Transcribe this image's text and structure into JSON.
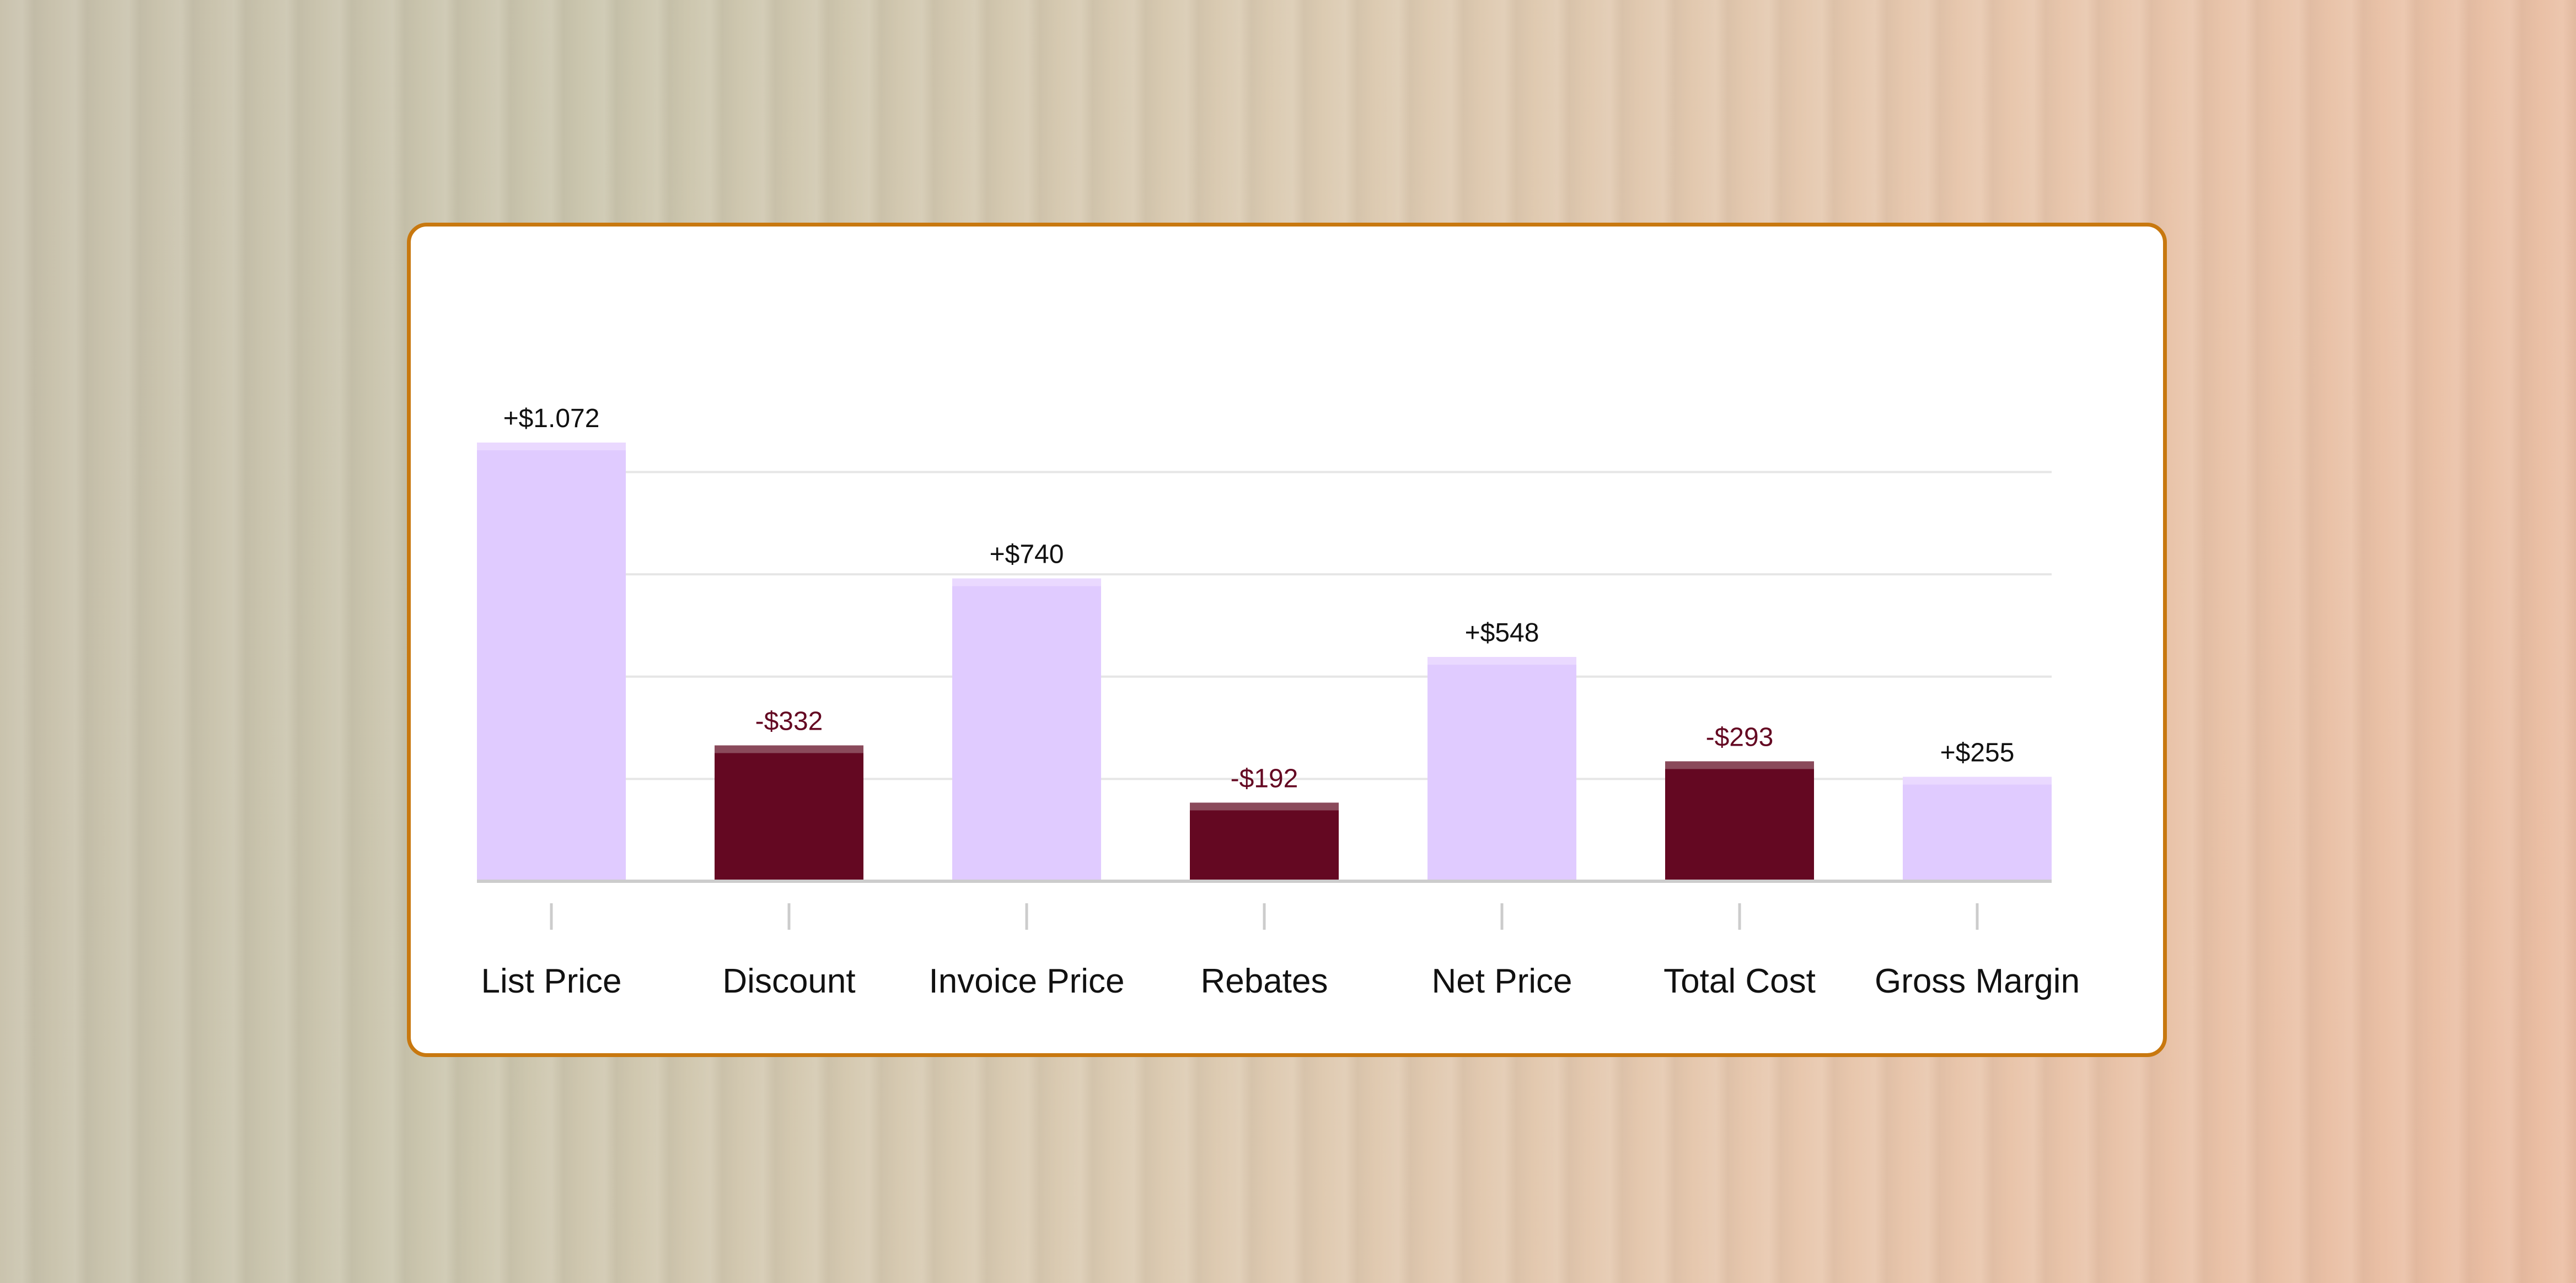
{
  "chart_data": {
    "type": "bar",
    "categories": [
      "List Price",
      "Discount",
      "Invoice Price",
      "Rebates",
      "Net Price",
      "Total Cost",
      "Gross Margin"
    ],
    "values": [
      1072,
      -332,
      740,
      -192,
      548,
      -293,
      255
    ],
    "value_labels": [
      "+$1.072",
      "-$332",
      "+$740",
      "-$192",
      "+$548",
      "-$293",
      "+$255"
    ],
    "title": "",
    "xlabel": "",
    "ylabel": "",
    "ylim": [
      0,
      1350
    ],
    "grid": true,
    "legend": "none"
  },
  "colors": {
    "positive_bar": "#e0cbff",
    "positive_cap": "#ead9ff",
    "negative_bar": "#640822",
    "negative_cap": "#8a4a5b",
    "positive_label": "#111111",
    "negative_label": "#640822",
    "card_border": "#c8780f",
    "gridline": "#e6e6e6",
    "axis": "#cccccc"
  }
}
